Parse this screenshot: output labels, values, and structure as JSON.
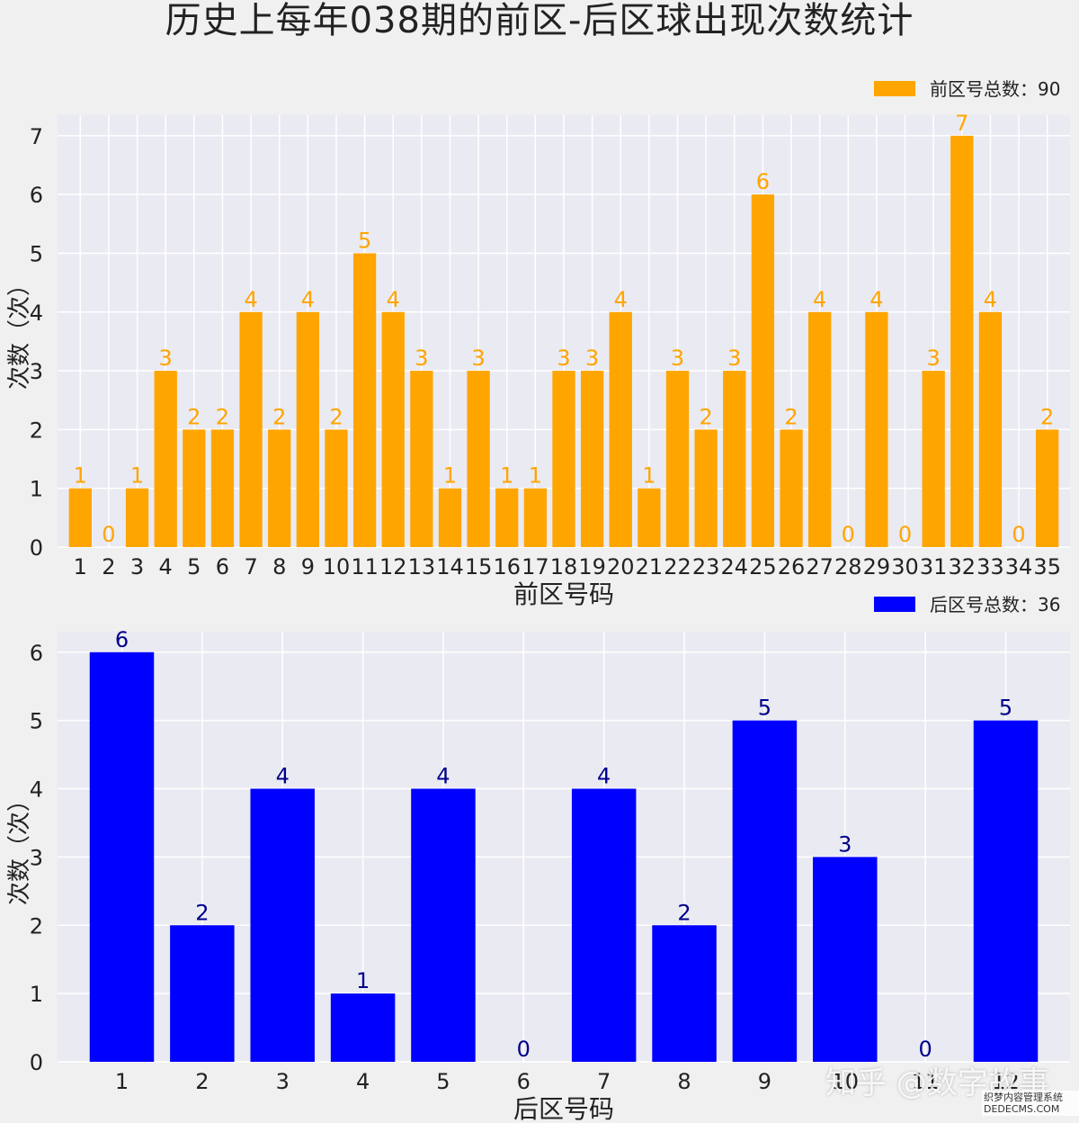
{
  "title": "历史上每年038期的前区-后区球出现次数统计",
  "watermark": {
    "text": "知乎 @数字故事",
    "site": "织梦内容管理系统 DEDECMS.COM"
  },
  "chart_data": [
    {
      "type": "bar",
      "color": "#ffa500",
      "label_color": "#ffa500",
      "xlabel": "前区号码",
      "ylabel": "次数（次）",
      "legend": "前区号总数：90",
      "legend_position": "top-right",
      "grid": true,
      "ylim": [
        0,
        7.35
      ],
      "yticks": [
        0,
        1,
        2,
        3,
        4,
        5,
        6,
        7
      ],
      "categories": [
        "1",
        "2",
        "3",
        "4",
        "5",
        "6",
        "7",
        "8",
        "9",
        "10",
        "11",
        "12",
        "13",
        "14",
        "15",
        "16",
        "17",
        "18",
        "19",
        "20",
        "21",
        "22",
        "23",
        "24",
        "25",
        "26",
        "27",
        "28",
        "29",
        "30",
        "31",
        "32",
        "33",
        "34",
        "35"
      ],
      "values": [
        1,
        0,
        1,
        3,
        2,
        2,
        4,
        2,
        4,
        2,
        5,
        4,
        3,
        1,
        3,
        1,
        1,
        3,
        3,
        4,
        1,
        3,
        2,
        3,
        6,
        2,
        4,
        0,
        4,
        0,
        3,
        7,
        4,
        0,
        2
      ]
    },
    {
      "type": "bar",
      "color": "#0000ff",
      "label_color": "#00008b",
      "xlabel": "后区号码",
      "ylabel": "次数（次）",
      "legend": "后区号总数：36",
      "legend_position": "top-right",
      "grid": true,
      "ylim": [
        0,
        6.3
      ],
      "yticks": [
        0,
        1,
        2,
        3,
        4,
        5,
        6
      ],
      "categories": [
        "1",
        "2",
        "3",
        "4",
        "5",
        "6",
        "7",
        "8",
        "9",
        "10",
        "11",
        "12"
      ],
      "values": [
        6,
        2,
        4,
        1,
        4,
        0,
        4,
        2,
        5,
        3,
        0,
        5
      ]
    }
  ]
}
